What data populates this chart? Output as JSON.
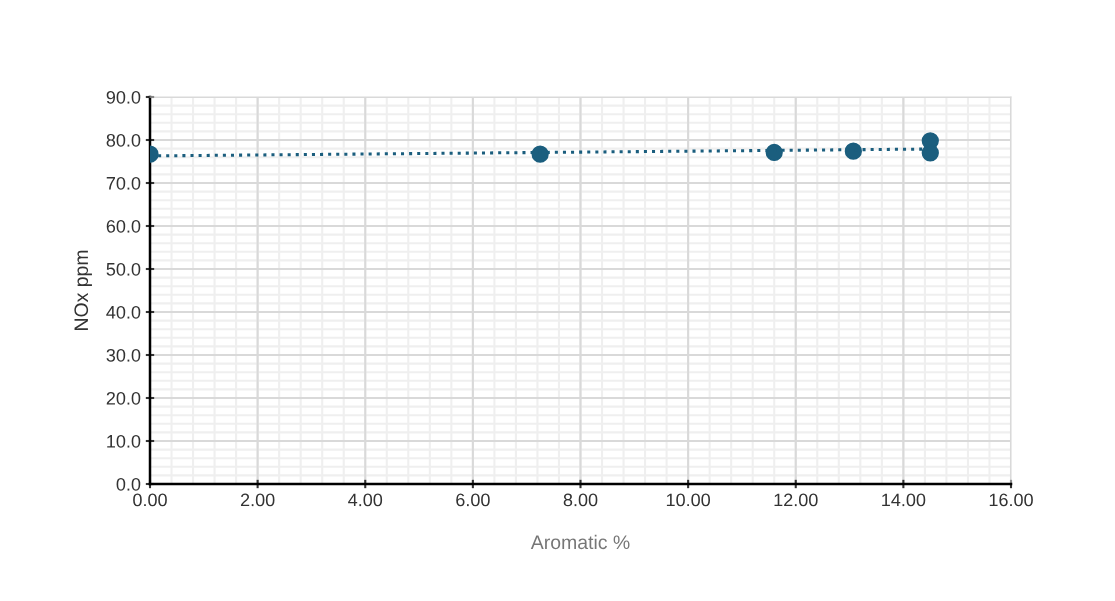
{
  "chart_data": {
    "type": "scatter",
    "xlabel": "Aromatic %",
    "ylabel": "NOx ppm",
    "series": [
      {
        "color": "#1b5e7e",
        "marker": "circle",
        "x": [
          0.0,
          7.25,
          11.6,
          13.07,
          14.5,
          14.5
        ],
        "values": [
          76.7,
          76.7,
          77.1,
          77.4,
          79.8,
          77.0
        ]
      },
      {
        "type": "line",
        "color": "#1b5e7e",
        "line_style": "dotted",
        "marker": "none",
        "x": [
          0.0,
          14.5
        ],
        "values": [
          76.3,
          77.9
        ]
      }
    ],
    "xlim": [
      0,
      16
    ],
    "xticks": [
      {
        "value": 0,
        "label": "0.00"
      },
      {
        "value": 2,
        "label": "2.00"
      },
      {
        "value": 4,
        "label": "4.00"
      },
      {
        "value": 6,
        "label": "6.00"
      },
      {
        "value": 8,
        "label": "8.00"
      },
      {
        "value": 10,
        "label": "10.00"
      },
      {
        "value": 12,
        "label": "12.00"
      },
      {
        "value": 14,
        "label": "14.00"
      },
      {
        "value": 16,
        "label": "16.00"
      }
    ],
    "ylim": [
      0,
      90
    ],
    "yticks": [
      {
        "value": 0,
        "label": "0.0"
      },
      {
        "value": 10,
        "label": "10.0"
      },
      {
        "value": 20,
        "label": "20.0"
      },
      {
        "value": 30,
        "label": "30.0"
      },
      {
        "value": 40,
        "label": "40.0"
      },
      {
        "value": 50,
        "label": "50.0"
      },
      {
        "value": 60,
        "label": "60.0"
      },
      {
        "value": 70,
        "label": "70.0"
      },
      {
        "value": 80,
        "label": "80.0"
      },
      {
        "value": 90,
        "label": "90.0"
      }
    ],
    "grid": true
  }
}
